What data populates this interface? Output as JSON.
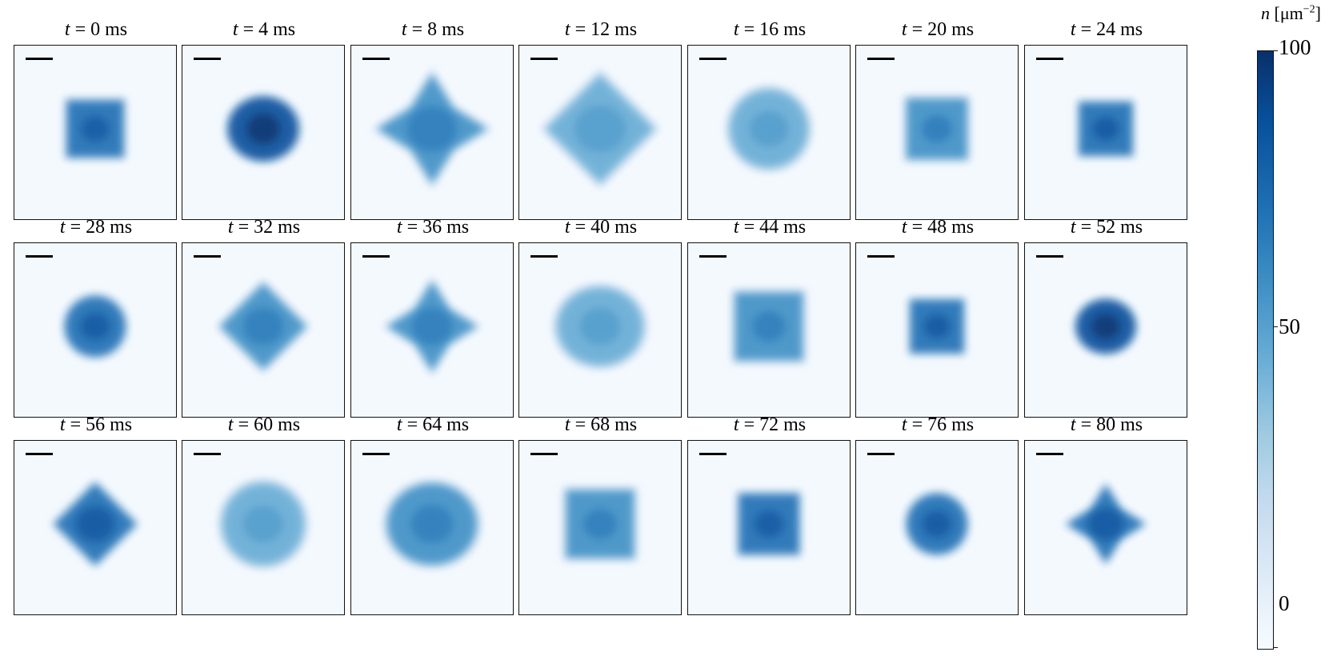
{
  "panel": {
    "time_prefix": "t",
    "equals": "=",
    "unit": "ms",
    "cells": [
      {
        "t": "0",
        "shape": "square",
        "scale": 0.8,
        "intensity": 0.7
      },
      {
        "t": "4",
        "shape": "blob",
        "scale": 0.95,
        "intensity": 0.95
      },
      {
        "t": "8",
        "shape": "star",
        "scale": 1.4,
        "intensity": 0.55
      },
      {
        "t": "12",
        "shape": "diamond",
        "scale": 1.45,
        "intensity": 0.4
      },
      {
        "t": "16",
        "shape": "circle",
        "scale": 1.1,
        "intensity": 0.45
      },
      {
        "t": "20",
        "shape": "square",
        "scale": 0.85,
        "intensity": 0.65
      },
      {
        "t": "24",
        "shape": "square",
        "scale": 0.75,
        "intensity": 0.85
      },
      {
        "t": "28",
        "shape": "circle",
        "scale": 0.85,
        "intensity": 0.8
      },
      {
        "t": "32",
        "shape": "diamond",
        "scale": 1.15,
        "intensity": 0.55
      },
      {
        "t": "36",
        "shape": "star",
        "scale": 1.15,
        "intensity": 0.55
      },
      {
        "t": "40",
        "shape": "blob",
        "scale": 1.15,
        "intensity": 0.45
      },
      {
        "t": "44",
        "shape": "square",
        "scale": 0.95,
        "intensity": 0.55
      },
      {
        "t": "48",
        "shape": "square",
        "scale": 0.75,
        "intensity": 0.85
      },
      {
        "t": "52",
        "shape": "blob",
        "scale": 0.8,
        "intensity": 0.9
      },
      {
        "t": "56",
        "shape": "diamond",
        "scale": 1.1,
        "intensity": 0.8
      },
      {
        "t": "60",
        "shape": "circle",
        "scale": 1.15,
        "intensity": 0.4
      },
      {
        "t": "64",
        "shape": "blob",
        "scale": 1.2,
        "intensity": 0.5
      },
      {
        "t": "68",
        "shape": "square",
        "scale": 0.95,
        "intensity": 0.55
      },
      {
        "t": "72",
        "shape": "square",
        "scale": 0.85,
        "intensity": 0.7
      },
      {
        "t": "76",
        "shape": "circle",
        "scale": 0.85,
        "intensity": 0.8
      },
      {
        "t": "80",
        "shape": "star",
        "scale": 1.0,
        "intensity": 0.85
      }
    ]
  },
  "colorbar": {
    "variable": "n",
    "unit": "[μm",
    "exponent": "−2",
    "unit_close": "]",
    "max": "100",
    "mid": "50",
    "min": "0",
    "colormap": [
      "#f7fbff",
      "#deebf7",
      "#c6dbef",
      "#9ecae1",
      "#6baed6",
      "#4292c6",
      "#2171b5",
      "#08519c",
      "#08306b"
    ]
  }
}
